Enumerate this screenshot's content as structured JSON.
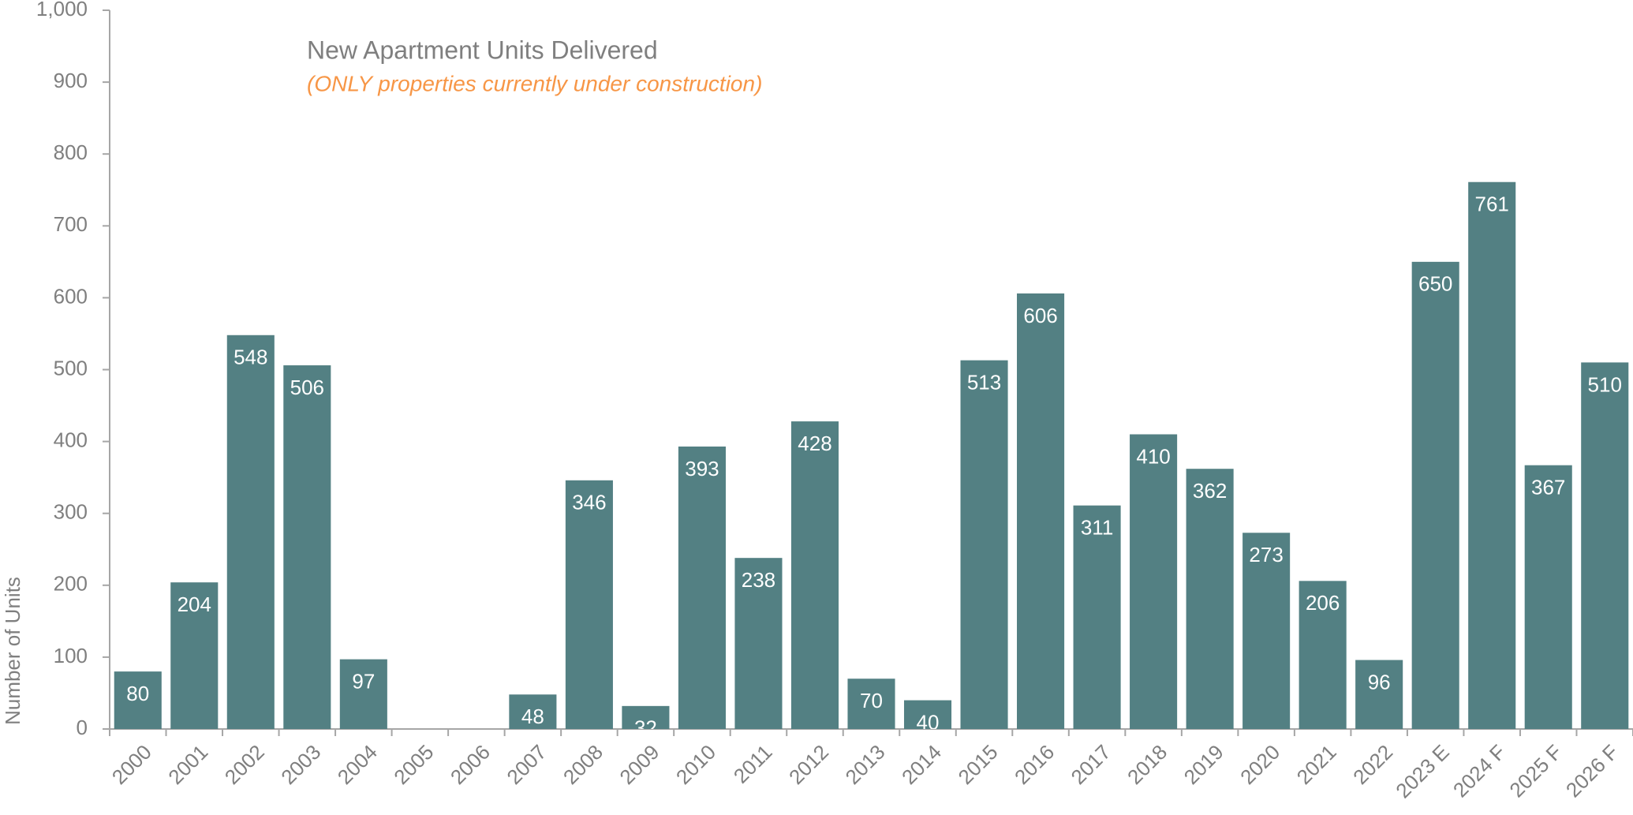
{
  "chart_data": {
    "type": "bar",
    "title": "New Apartment Units Delivered",
    "subtitle": "(ONLY properties currently under construction)",
    "y_axis_label": "Number of Units",
    "categories": [
      "2000",
      "2001",
      "2002",
      "2003",
      "2004",
      "2005",
      "2006",
      "2007",
      "2008",
      "2009",
      "2010",
      "2011",
      "2012",
      "2013",
      "2014",
      "2015",
      "2016",
      "2017",
      "2018",
      "2019",
      "2020",
      "2021",
      "2022",
      "2023 E",
      "2024 F",
      "2025 F",
      "2026 F"
    ],
    "values": [
      80,
      204,
      548,
      506,
      97,
      null,
      null,
      48,
      346,
      32,
      393,
      238,
      428,
      70,
      40,
      513,
      606,
      311,
      410,
      362,
      273,
      206,
      96,
      650,
      761,
      367,
      510
    ],
    "color": "#538083",
    "ylim": [
      0,
      1000
    ],
    "yticks": [
      0,
      100,
      200,
      300,
      400,
      500,
      600,
      700,
      800,
      900,
      {
        "value": 1000,
        "label": "1,000"
      }
    ],
    "grid": false
  }
}
